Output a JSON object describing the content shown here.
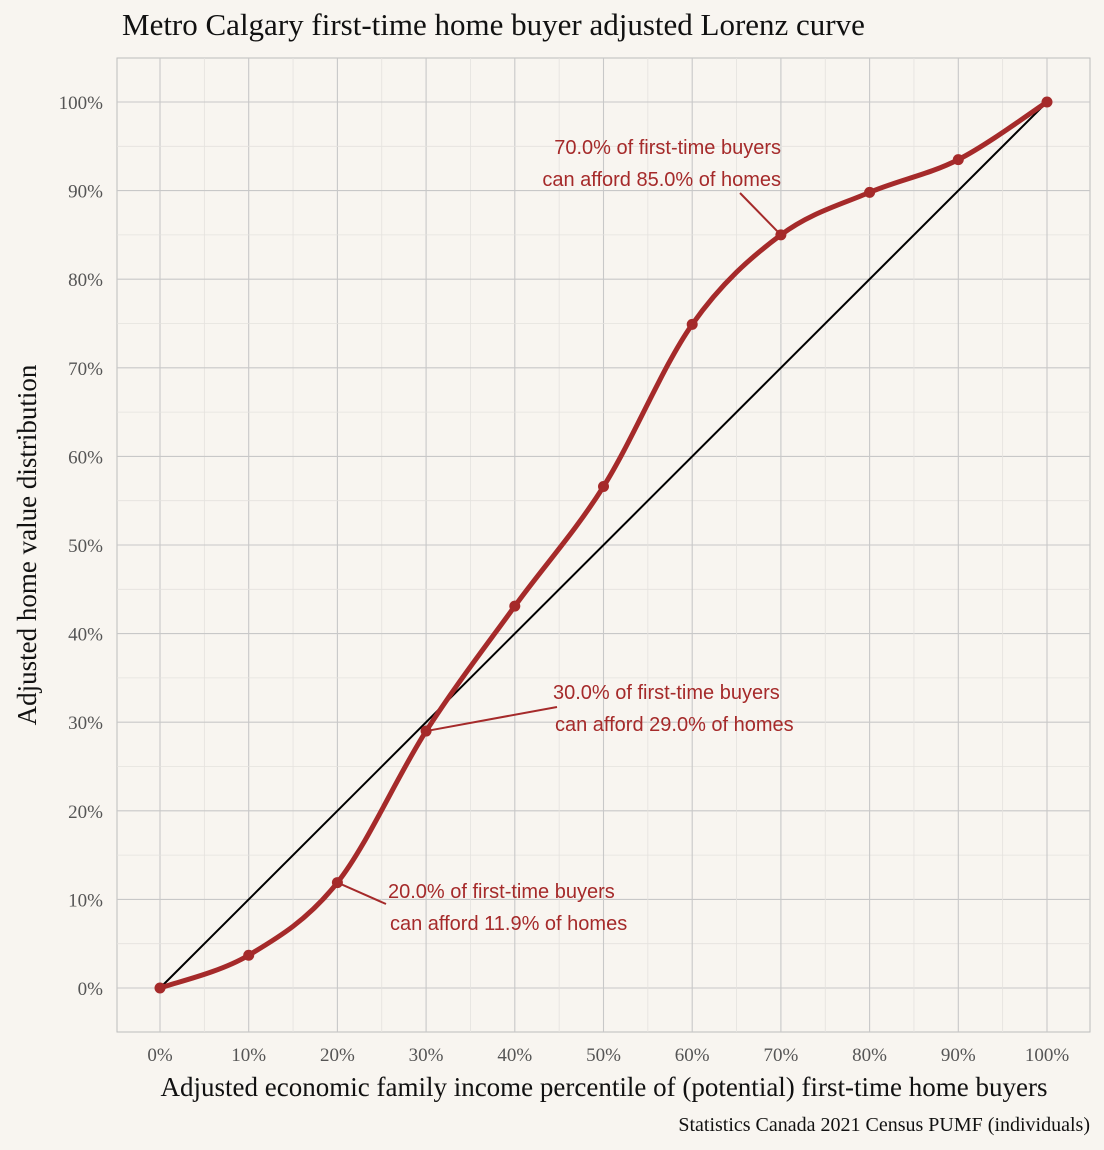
{
  "chart_data": {
    "type": "line",
    "title": "Metro Calgary first-time home buyer adjusted Lorenz curve",
    "xlabel": "Adjusted economic family income percentile of (potential) first-time home buyers",
    "ylabel": "Adjusted home value distribution",
    "caption": "Statistics Canada 2021 Census PUMF (individuals)",
    "xlim": [
      0,
      1
    ],
    "ylim": [
      0,
      1
    ],
    "x_tick_labels": [
      "0%",
      "10%",
      "20%",
      "30%",
      "40%",
      "50%",
      "60%",
      "70%",
      "80%",
      "90%",
      "100%"
    ],
    "y_tick_labels": [
      "0%",
      "10%",
      "20%",
      "30%",
      "40%",
      "50%",
      "60%",
      "70%",
      "80%",
      "90%",
      "100%"
    ],
    "grid": true,
    "series": [
      {
        "color": "#a52a2a",
        "x": [
          0,
          0.1,
          0.2,
          0.3,
          0.4,
          0.5,
          0.6,
          0.7,
          0.8,
          0.9,
          1.0
        ],
        "values": [
          0,
          0.037,
          0.119,
          0.29,
          0.431,
          0.566,
          0.749,
          0.85,
          0.898,
          0.935,
          1.0
        ]
      },
      {
        "color": "#000000",
        "x": [
          0,
          1.0
        ],
        "values": [
          0,
          1.0
        ]
      }
    ],
    "annotations": [
      {
        "x": 0.7,
        "y": 0.85,
        "lines": [
          "70.0% of first-time buyers",
          "can afford 85.0% of homes"
        ]
      },
      {
        "x": 0.3,
        "y": 0.29,
        "lines": [
          "30.0% of first-time buyers",
          "can afford 29.0% of homes"
        ]
      },
      {
        "x": 0.2,
        "y": 0.119,
        "lines": [
          "20.0% of first-time buyers",
          "can afford 11.9% of homes"
        ]
      }
    ]
  }
}
